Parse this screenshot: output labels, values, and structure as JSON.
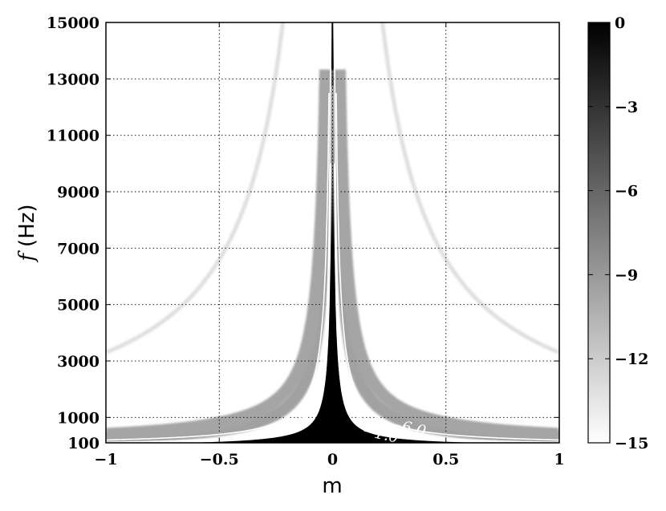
{
  "chart_data": {
    "type": "heatmap",
    "title": "",
    "xlabel": "m",
    "ylabel_symbol": "f",
    "ylabel_unit": "(Hz)",
    "xlim": [
      -1,
      1
    ],
    "ylim": [
      100,
      15000
    ],
    "x_ticks": [
      -1,
      -0.5,
      0,
      0.5,
      1
    ],
    "x_tick_labels": [
      "−1",
      "−0.5",
      "0",
      "0.5",
      "1"
    ],
    "y_ticks": [
      100,
      1000,
      3000,
      5000,
      7000,
      9000,
      11000,
      13000,
      15000
    ],
    "y_tick_labels": [
      "100",
      "1000",
      "3000",
      "5000",
      "7000",
      "9000",
      "11000",
      "13000",
      "15000"
    ],
    "grid": true,
    "colormap": "gray_r",
    "colorbar": {
      "range": [
        -15,
        0
      ],
      "ticks": [
        0,
        -3,
        -6,
        -9,
        -12,
        -15
      ],
      "tick_labels": [
        "0",
        "−3",
        "−6",
        "−9",
        "−12",
        "−15"
      ]
    },
    "contours": [
      {
        "level": -1.0,
        "label": "−1.0",
        "k": 80
      },
      {
        "level": -3.0,
        "label": "−3.0",
        "k": 120
      },
      {
        "level": -6.0,
        "label": "−6.0",
        "k": 200
      }
    ],
    "bands": [
      {
        "k": 280,
        "strength": 0.82
      },
      {
        "k": 400,
        "strength": 0.78
      },
      {
        "k": 3300,
        "strength": 0.28
      }
    ]
  }
}
